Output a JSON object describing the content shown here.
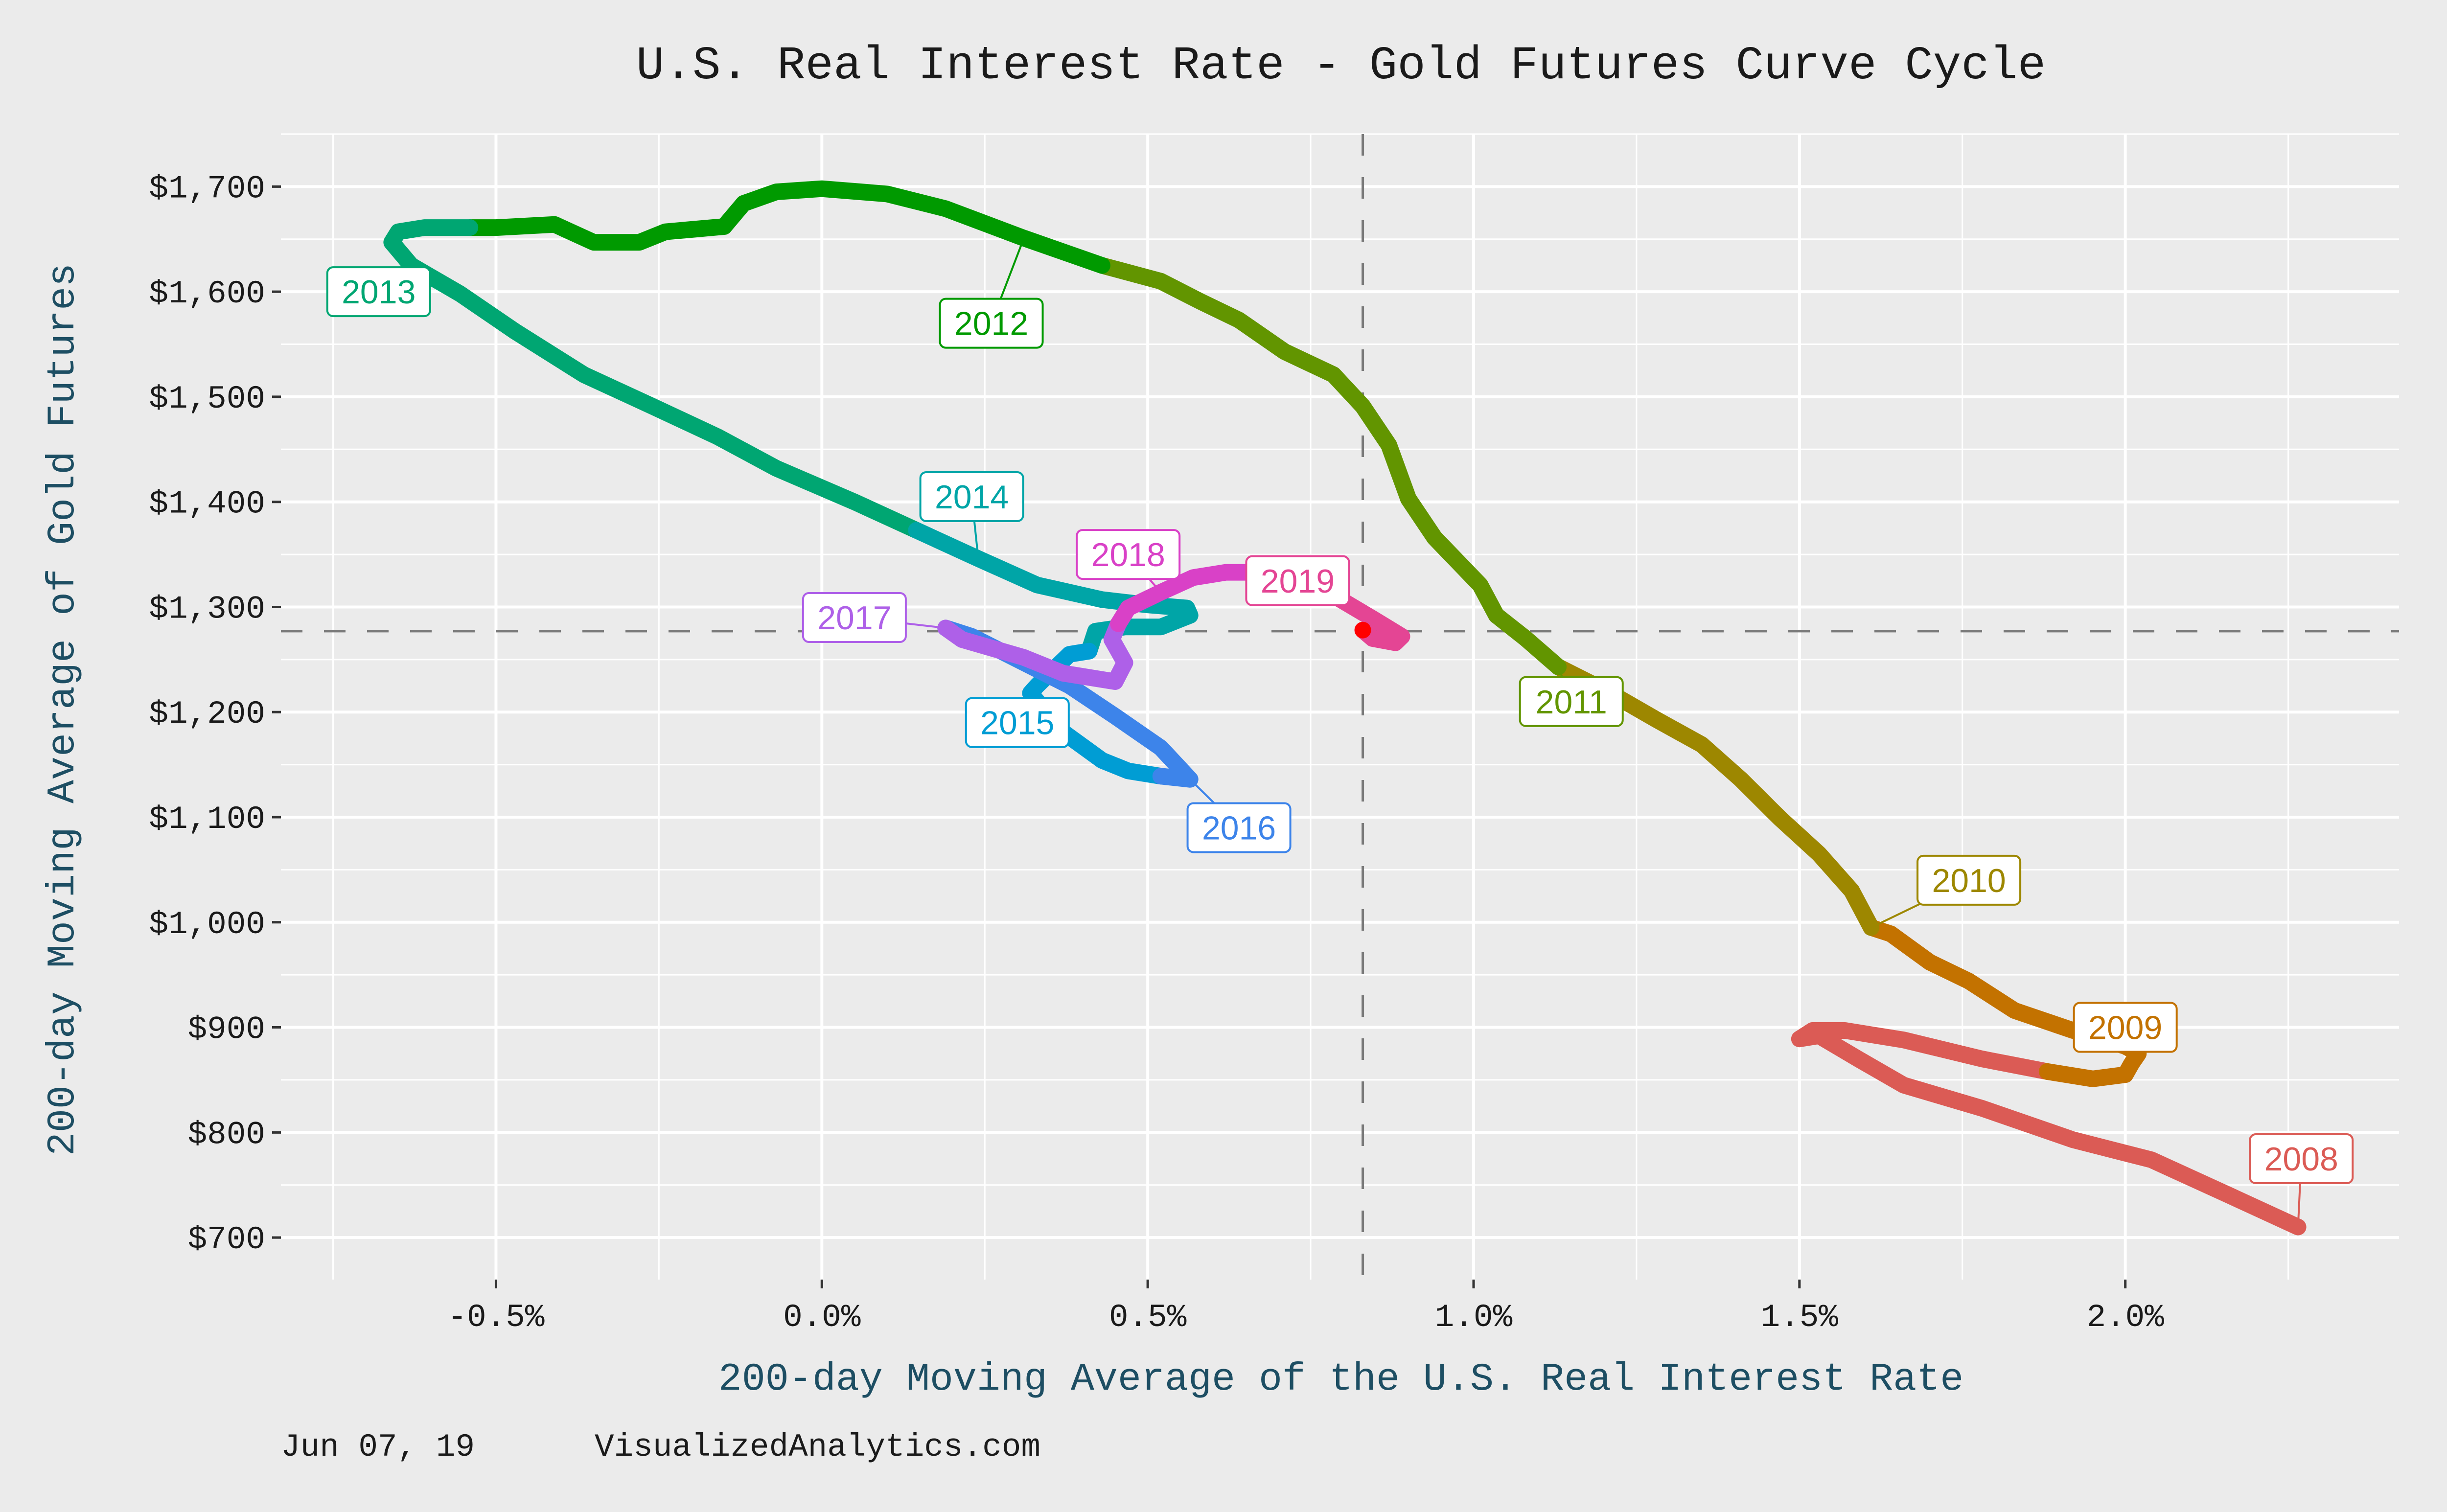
{
  "chart_data": {
    "type": "line",
    "title": "U.S. Real Interest Rate - Gold Futures Curve Cycle",
    "xlabel": "200-day Moving Average of the U.S. Real Interest Rate",
    "ylabel": "200-day Moving Average of Gold Futures",
    "xlim": [
      -0.83,
      2.42
    ],
    "ylim": [
      660,
      1750
    ],
    "x_ticks": [
      {
        "value": -0.5,
        "label": "-0.5%"
      },
      {
        "value": 0.0,
        "label": "0.0%"
      },
      {
        "value": 0.5,
        "label": "0.5%"
      },
      {
        "value": 1.0,
        "label": "1.0%"
      },
      {
        "value": 1.5,
        "label": "1.5%"
      },
      {
        "value": 2.0,
        "label": "2.0%"
      }
    ],
    "y_ticks": [
      {
        "value": 700,
        "label": "$700"
      },
      {
        "value": 800,
        "label": "$800"
      },
      {
        "value": 900,
        "label": "$900"
      },
      {
        "value": 1000,
        "label": "$1,000"
      },
      {
        "value": 1100,
        "label": "$1,100"
      },
      {
        "value": 1200,
        "label": "$1,200"
      },
      {
        "value": 1300,
        "label": "$1,300"
      },
      {
        "value": 1400,
        "label": "$1,400"
      },
      {
        "value": 1500,
        "label": "$1,500"
      },
      {
        "value": 1600,
        "label": "$1,600"
      },
      {
        "value": 1700,
        "label": "$1,700"
      }
    ],
    "grid": true,
    "reference_lines": {
      "x": 0.83,
      "y": 1277,
      "style": "dashed"
    },
    "current_point": {
      "x": 0.83,
      "y": 1278,
      "color": "#ff0000"
    },
    "series": [
      {
        "name": "2008",
        "color": "#db5b55",
        "label_pos": [
          2.27,
          775
        ],
        "points": [
          [
            2.265,
            710
          ],
          [
            2.16,
            740
          ],
          [
            2.04,
            774
          ],
          [
            1.92,
            793
          ],
          [
            1.78,
            823
          ],
          [
            1.66,
            845
          ],
          [
            1.59,
            870
          ],
          [
            1.53,
            892
          ],
          [
            1.5,
            889
          ],
          [
            1.52,
            897
          ],
          [
            1.57,
            897
          ],
          [
            1.66,
            888
          ],
          [
            1.78,
            870
          ],
          [
            1.88,
            858
          ]
        ]
      },
      {
        "name": "2009",
        "color": "#c37200",
        "label_pos": [
          2.0,
          900
        ],
        "points": [
          [
            1.88,
            858
          ],
          [
            1.95,
            851
          ],
          [
            2.0,
            855
          ],
          [
            2.01,
            866
          ],
          [
            2.02,
            875
          ],
          [
            2.0,
            882
          ],
          [
            1.92,
            897
          ],
          [
            1.83,
            916
          ],
          [
            1.76,
            944
          ],
          [
            1.7,
            962
          ],
          [
            1.64,
            989
          ],
          [
            1.61,
            995
          ]
        ]
      },
      {
        "name": "2010",
        "color": "#9d8700",
        "label_pos": [
          1.76,
          1040
        ],
        "points": [
          [
            1.61,
            995
          ],
          [
            1.58,
            1030
          ],
          [
            1.53,
            1065
          ],
          [
            1.47,
            1099
          ],
          [
            1.41,
            1136
          ],
          [
            1.35,
            1169
          ],
          [
            1.28,
            1193
          ],
          [
            1.21,
            1218
          ],
          [
            1.13,
            1243
          ]
        ]
      },
      {
        "name": "2011",
        "color": "#629500",
        "label_pos": [
          1.15,
          1210
        ],
        "points": [
          [
            1.13,
            1243
          ],
          [
            1.08,
            1270
          ],
          [
            1.035,
            1292
          ],
          [
            1.01,
            1321
          ],
          [
            0.94,
            1366
          ],
          [
            0.9,
            1403
          ],
          [
            0.87,
            1454
          ],
          [
            0.83,
            1491
          ],
          [
            0.785,
            1521
          ],
          [
            0.71,
            1543
          ],
          [
            0.64,
            1573
          ],
          [
            0.58,
            1591
          ],
          [
            0.52,
            1610
          ],
          [
            0.43,
            1625
          ]
        ]
      },
      {
        "name": "2012",
        "color": "#009a00",
        "label_pos": [
          0.26,
          1570
        ],
        "points": [
          [
            0.43,
            1625
          ],
          [
            0.31,
            1651
          ],
          [
            0.19,
            1679
          ],
          [
            0.1,
            1693
          ],
          [
            0.0,
            1698
          ],
          [
            -0.07,
            1695
          ],
          [
            -0.12,
            1684
          ],
          [
            -0.15,
            1662
          ],
          [
            -0.24,
            1657
          ],
          [
            -0.28,
            1647
          ],
          [
            -0.35,
            1647
          ],
          [
            -0.41,
            1664
          ],
          [
            -0.5,
            1661
          ],
          [
            -0.54,
            1661
          ]
        ]
      },
      {
        "name": "2013",
        "color": "#00a672",
        "label_pos": [
          -0.68,
          1600
        ],
        "points": [
          [
            -0.54,
            1661
          ],
          [
            -0.61,
            1661
          ],
          [
            -0.65,
            1657
          ],
          [
            -0.66,
            1647
          ],
          [
            -0.63,
            1625
          ],
          [
            -0.555,
            1598
          ],
          [
            -0.47,
            1562
          ],
          [
            -0.365,
            1521
          ],
          [
            -0.26,
            1491
          ],
          [
            -0.16,
            1462
          ],
          [
            -0.07,
            1432
          ],
          [
            0.05,
            1400
          ],
          [
            0.145,
            1373
          ]
        ]
      },
      {
        "name": "2014",
        "color": "#00a5a7",
        "label_pos": [
          0.23,
          1405
        ],
        "points": [
          [
            0.145,
            1373
          ],
          [
            0.24,
            1346
          ],
          [
            0.33,
            1321
          ],
          [
            0.43,
            1307
          ],
          [
            0.5,
            1302
          ],
          [
            0.56,
            1299
          ],
          [
            0.565,
            1292
          ],
          [
            0.52,
            1281
          ],
          [
            0.465,
            1281
          ],
          [
            0.42,
            1277
          ],
          [
            0.41,
            1258
          ]
        ]
      },
      {
        "name": "2015",
        "color": "#009dd4",
        "label_pos": [
          0.3,
          1190
        ],
        "points": [
          [
            0.41,
            1258
          ],
          [
            0.38,
            1255
          ],
          [
            0.33,
            1225
          ],
          [
            0.32,
            1218
          ],
          [
            0.37,
            1181
          ],
          [
            0.43,
            1154
          ],
          [
            0.47,
            1144
          ],
          [
            0.52,
            1139
          ]
        ]
      },
      {
        "name": "2016",
        "color": "#3d84ea",
        "label_pos": [
          0.64,
          1090
        ],
        "points": [
          [
            0.52,
            1139
          ],
          [
            0.565,
            1136
          ],
          [
            0.52,
            1166
          ],
          [
            0.45,
            1196
          ],
          [
            0.38,
            1225
          ],
          [
            0.31,
            1247
          ],
          [
            0.23,
            1272
          ],
          [
            0.19,
            1280
          ]
        ]
      },
      {
        "name": "2017",
        "color": "#ae60e8",
        "label_pos": [
          0.05,
          1290
        ],
        "points": [
          [
            0.19,
            1280
          ],
          [
            0.215,
            1269
          ],
          [
            0.31,
            1252
          ],
          [
            0.37,
            1237
          ],
          [
            0.45,
            1229
          ],
          [
            0.465,
            1247
          ],
          [
            0.445,
            1269
          ],
          [
            0.455,
            1284
          ]
        ]
      },
      {
        "name": "2018",
        "color": "#d941c7",
        "label_pos": [
          0.47,
          1350
        ],
        "points": [
          [
            0.455,
            1284
          ],
          [
            0.47,
            1299
          ],
          [
            0.52,
            1314
          ],
          [
            0.57,
            1328
          ],
          [
            0.62,
            1333
          ],
          [
            0.665,
            1333
          ],
          [
            0.71,
            1328
          ]
        ]
      },
      {
        "name": "2019",
        "color": "#e44594",
        "label_pos": [
          0.73,
          1325
        ],
        "points": [
          [
            0.71,
            1328
          ],
          [
            0.785,
            1311
          ],
          [
            0.845,
            1289
          ],
          [
            0.89,
            1272
          ],
          [
            0.88,
            1266
          ],
          [
            0.845,
            1270
          ],
          [
            0.83,
            1278
          ]
        ]
      }
    ]
  },
  "footer": {
    "date": "Jun 07, 19",
    "source": "VisualizedAnalytics.com"
  }
}
